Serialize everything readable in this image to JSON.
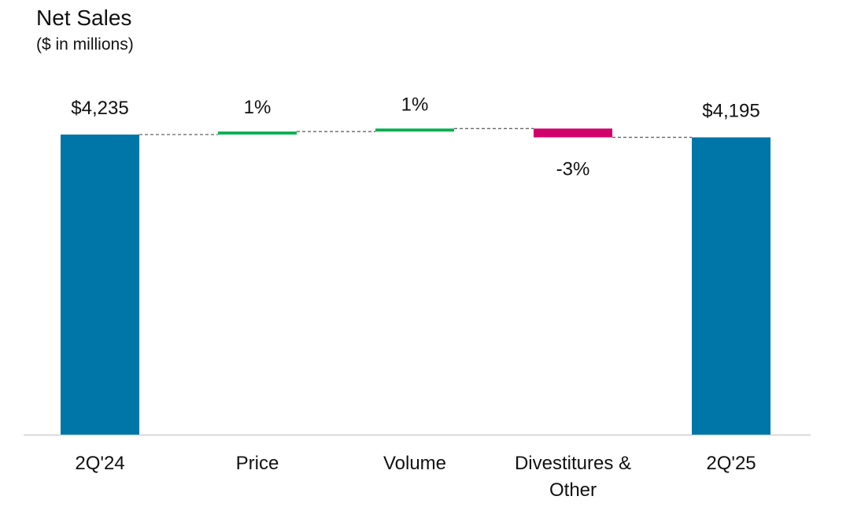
{
  "chart_data": {
    "type": "waterfall",
    "title": "Net Sales",
    "subtitle": "($ in millions)",
    "categories": [
      "2Q'24",
      "Price",
      "Volume",
      "Divestitures & Other",
      "2Q'25"
    ],
    "start_value": 4235,
    "end_value": 4195,
    "steps": [
      {
        "category": "Price",
        "value": 42,
        "label": "1%",
        "direction": "increase"
      },
      {
        "category": "Volume",
        "value": 42,
        "label": "1%",
        "direction": "increase"
      },
      {
        "category": "Divestitures & Other",
        "value": -124,
        "label": "-3%",
        "direction": "decrease"
      }
    ],
    "totals": [
      {
        "category": "2Q'24",
        "value": 4235,
        "label": "$4,235"
      },
      {
        "category": "2Q'25",
        "value": 4195,
        "label": "$4,195"
      }
    ],
    "colors": {
      "total": "#0076A8",
      "increase": "#00B050",
      "decrease": "#D1006B",
      "connector": "#666666",
      "baseline": "#D9D9D9"
    },
    "grid": false,
    "legend": "none"
  }
}
